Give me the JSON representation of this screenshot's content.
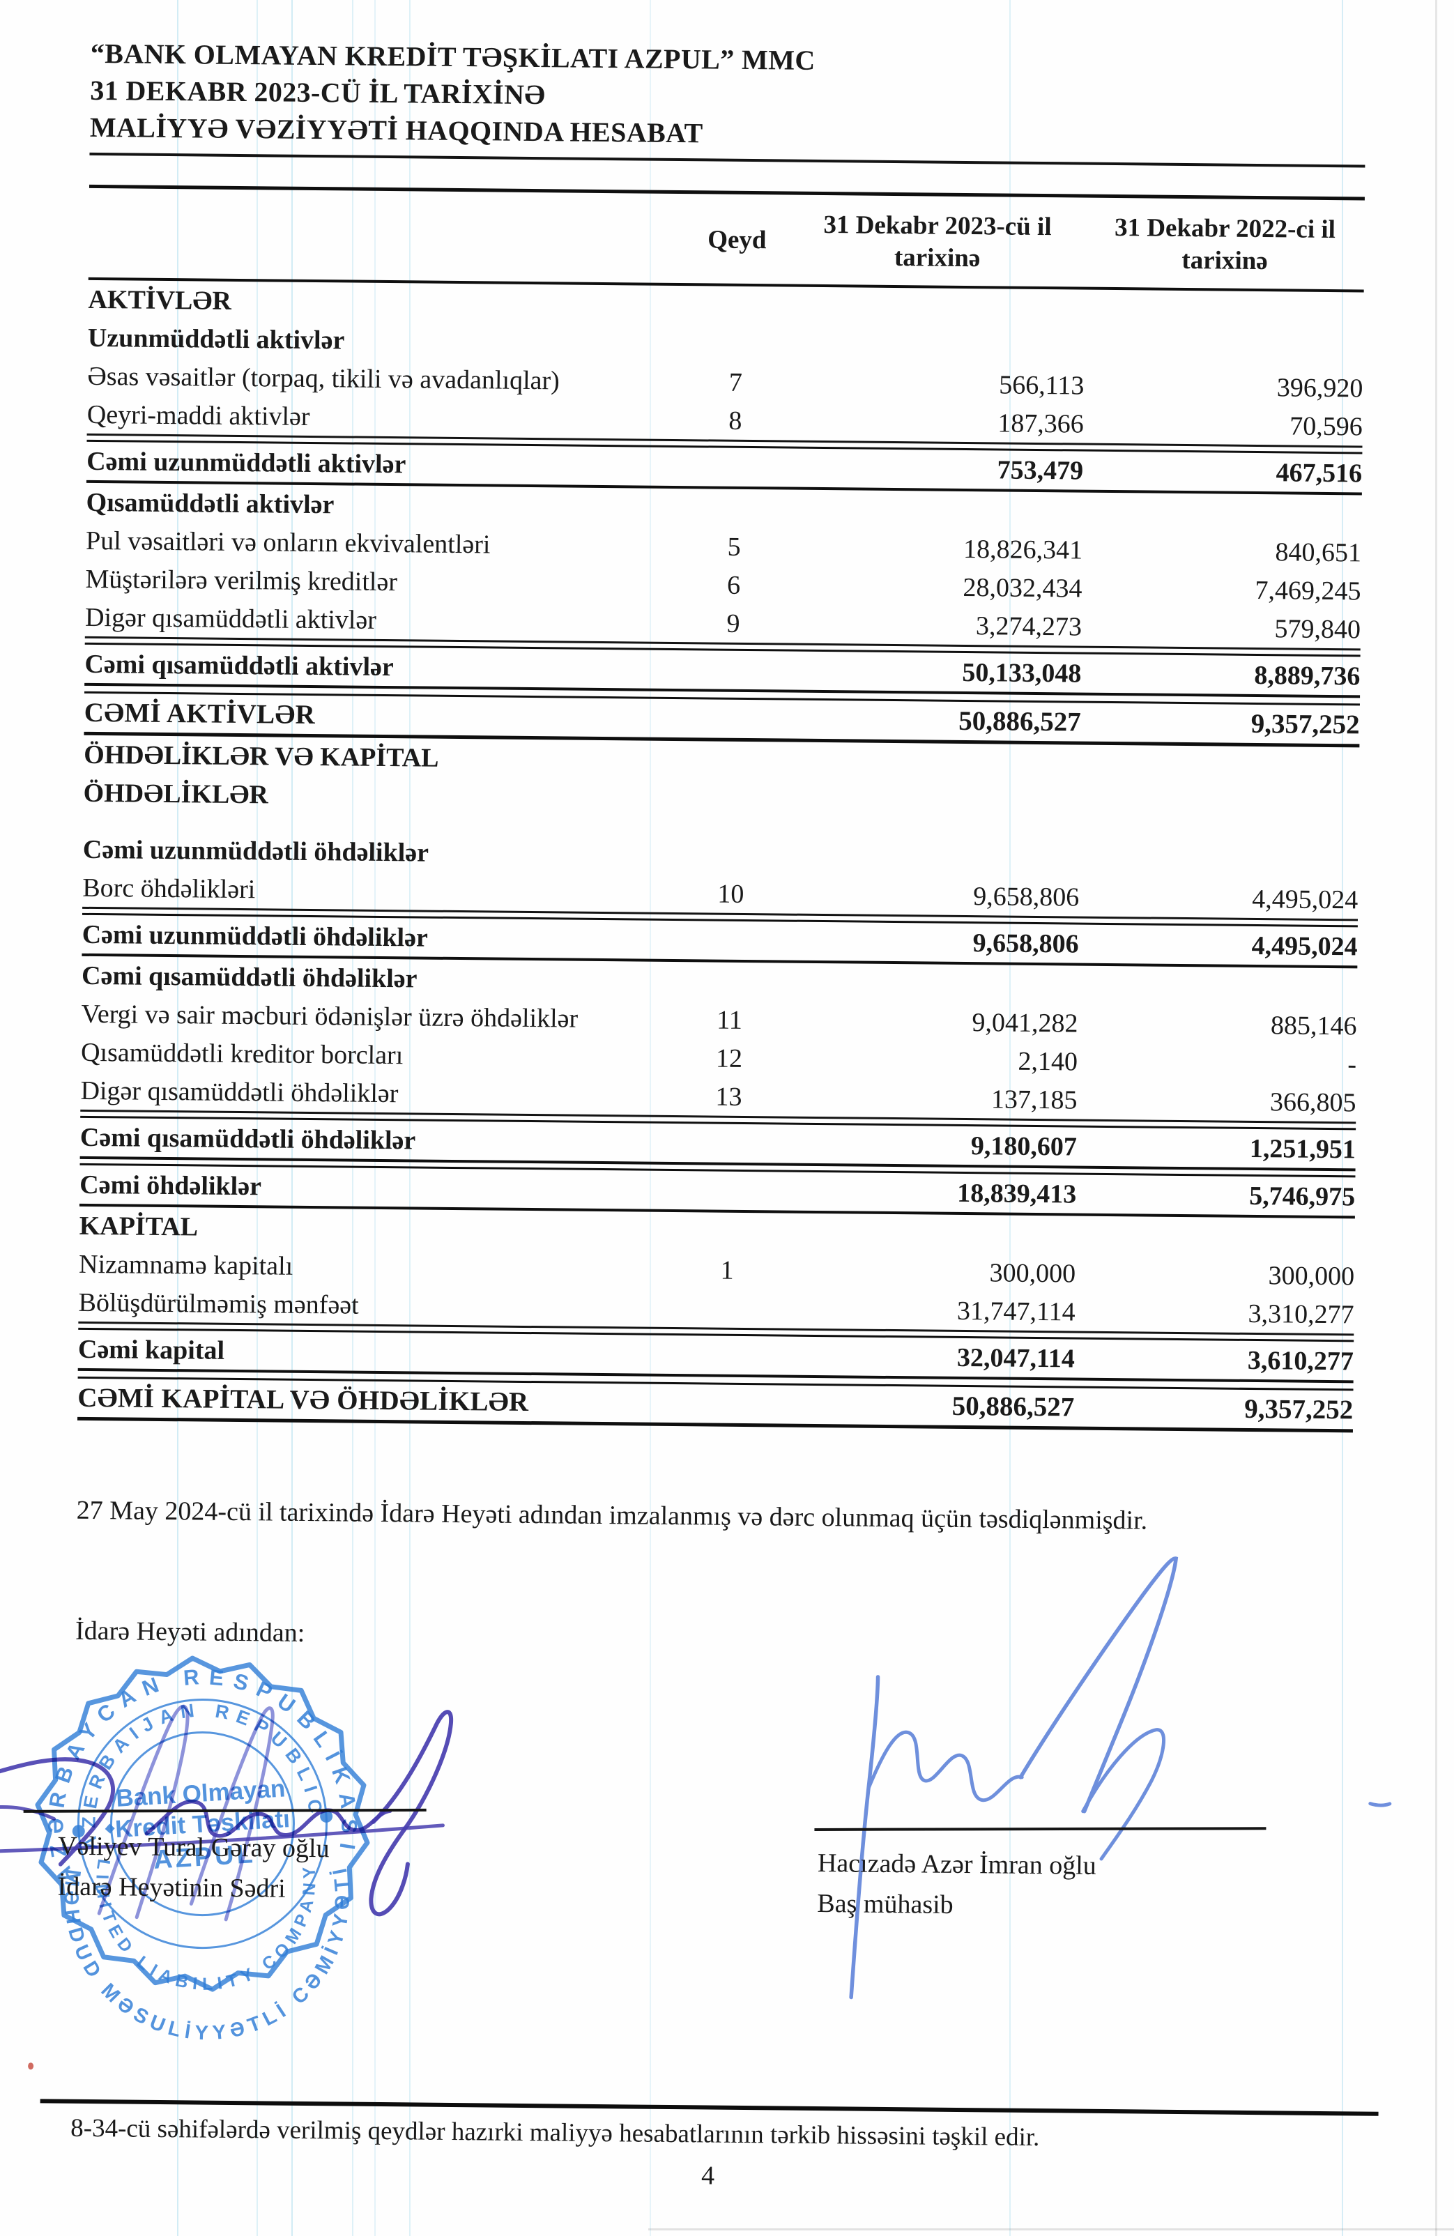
{
  "document": {
    "company_line": "“BANK OLMAYAN KREDİT TƏŞKİLATI AZPUL” MMC",
    "date_line": "31 DEKABR 2023-CÜ İL TARİXİNƏ",
    "title_line": "MALİYYƏ VƏZİYYƏTİ HAQQINDA HESABAT"
  },
  "table": {
    "columns": [
      "Qeyd",
      "31 Dekabr 2023-cü il tarixinə",
      "31 Dekabr 2022-ci il tarixinə"
    ],
    "rows": [
      {
        "label": "AKTİVLƏR",
        "qeyd": "",
        "v2023": "",
        "v2022": "",
        "style": "section"
      },
      {
        "label": "Uzunmüddətli aktivlər",
        "qeyd": "",
        "v2023": "",
        "v2022": "",
        "style": "subsection"
      },
      {
        "label": "Əsas vəsaitlər (torpaq, tikili və avadanlıqlar)",
        "qeyd": "7",
        "v2023": "566,113",
        "v2022": "396,920",
        "style": "item"
      },
      {
        "label": "Qeyri-maddi aktivlər",
        "qeyd": "8",
        "v2023": "187,366",
        "v2022": "70,596",
        "style": "item rule-after"
      },
      {
        "label": "Cəmi uzunmüddətli aktivlər",
        "qeyd": "",
        "v2023": "753,479",
        "v2022": "467,516",
        "style": "total"
      },
      {
        "label": "Qısamüddətli aktivlər",
        "qeyd": "",
        "v2023": "",
        "v2022": "",
        "style": "subsection"
      },
      {
        "label": "Pul vəsaitləri və onların ekvivalentləri",
        "qeyd": "5",
        "v2023": "18,826,341",
        "v2022": "840,651",
        "style": "item"
      },
      {
        "label": "Müştərilərə verilmiş kreditlər",
        "qeyd": "6",
        "v2023": "28,032,434",
        "v2022": "7,469,245",
        "style": "item"
      },
      {
        "label": "Digər qısamüddətli aktivlər",
        "qeyd": "9",
        "v2023": "3,274,273",
        "v2022": "579,840",
        "style": "item rule-after"
      },
      {
        "label": "Cəmi qısamüddətli aktivlər",
        "qeyd": "",
        "v2023": "50,133,048",
        "v2022": "8,889,736",
        "style": "total"
      },
      {
        "label": "CƏMİ AKTİVLƏR",
        "qeyd": "",
        "v2023": "50,886,527",
        "v2022": "9,357,252",
        "style": "grand"
      },
      {
        "label": "ÖHDƏLİKLƏR VƏ KAPİTAL",
        "qeyd": "",
        "v2023": "",
        "v2022": "",
        "style": "section"
      },
      {
        "label": "ÖHDƏLİKLƏR",
        "qeyd": "",
        "v2023": "",
        "v2022": "",
        "style": "section"
      },
      {
        "label": "Cəmi uzunmüddətli öhdəliklər",
        "qeyd": "",
        "v2023": "",
        "v2022": "",
        "style": "subsection gap-before"
      },
      {
        "label": "Borc öhdəlikləri",
        "qeyd": "10",
        "v2023": "9,658,806",
        "v2022": "4,495,024",
        "style": "item rule-after"
      },
      {
        "label": "Cəmi uzunmüddətli öhdəliklər",
        "qeyd": "",
        "v2023": "9,658,806",
        "v2022": "4,495,024",
        "style": "total"
      },
      {
        "label": "Cəmi qısamüddətli öhdəliklər",
        "qeyd": "",
        "v2023": "",
        "v2022": "",
        "style": "subsection"
      },
      {
        "label": "Vergi və sair məcburi ödənişlər üzrə öhdəliklər",
        "qeyd": "11",
        "v2023": "9,041,282",
        "v2022": "885,146",
        "style": "item"
      },
      {
        "label": "Qısamüddətli kreditor borcları",
        "qeyd": "12",
        "v2023": "2,140",
        "v2022": "-",
        "style": "item"
      },
      {
        "label": "Digər qısamüddətli öhdəliklər",
        "qeyd": "13",
        "v2023": "137,185",
        "v2022": "366,805",
        "style": "item rule-after"
      },
      {
        "label": "Cəmi qısamüddətli öhdəliklər",
        "qeyd": "",
        "v2023": "9,180,607",
        "v2022": "1,251,951",
        "style": "total"
      },
      {
        "label": "Cəmi öhdəliklər",
        "qeyd": "",
        "v2023": "18,839,413",
        "v2022": "5,746,975",
        "style": "total"
      },
      {
        "label": "KAPİTAL",
        "qeyd": "",
        "v2023": "",
        "v2022": "",
        "style": "section"
      },
      {
        "label": "Nizamnamə kapitalı",
        "qeyd": "1",
        "v2023": "300,000",
        "v2022": "300,000",
        "style": "item"
      },
      {
        "label": "Bölüşdürülməmiş mənfəət",
        "qeyd": "",
        "v2023": "31,747,114",
        "v2022": "3,310,277",
        "style": "item rule-after"
      },
      {
        "label": "Cəmi kapital",
        "qeyd": "",
        "v2023": "32,047,114",
        "v2022": "3,610,277",
        "style": "total"
      },
      {
        "label": "CƏMİ KAPİTAL VƏ ÖHDƏLİKLƏR",
        "qeyd": "",
        "v2023": "50,886,527",
        "v2022": "9,357,252",
        "style": "grand"
      }
    ]
  },
  "approval_note": "27 May 2024-cü il tarixində İdarə Heyəti adından imzalanmış və dərc olunmaq üçün təsdiqlənmişdir.",
  "on_behalf": "İdarə Heyəti adından:",
  "signatories": {
    "left": {
      "name": "Vəliyev Tural Gəray oğlu",
      "title": "İdarə Heyətinin Sədri"
    },
    "right": {
      "name": "Hacızadə Azər İmran oğlu",
      "title": "Baş mühasib"
    }
  },
  "stamp": {
    "outer_top": "AZƏRBAYCAN RESPUBLİKASI",
    "outer_bottom": "MƏHDUD MƏSULİYYƏTLİ CƏMİYYƏTİ",
    "inner_top": "AZERBAIJAN REPUBLIC",
    "inner_bottom": "LIMITED LIABILITY COMPANY",
    "center_line1": "Bank Olmayan",
    "center_line2": "Kredit Təşkilatı",
    "center_line3": "AZPUL",
    "ink_color": "#2e7cd6"
  },
  "footer": {
    "note": "8-34-cü səhifələrdə verilmiş qeydlər hazırki maliyyə hesabatlarının tərkib hissəsini təşkil edir.",
    "page_number": "4"
  }
}
